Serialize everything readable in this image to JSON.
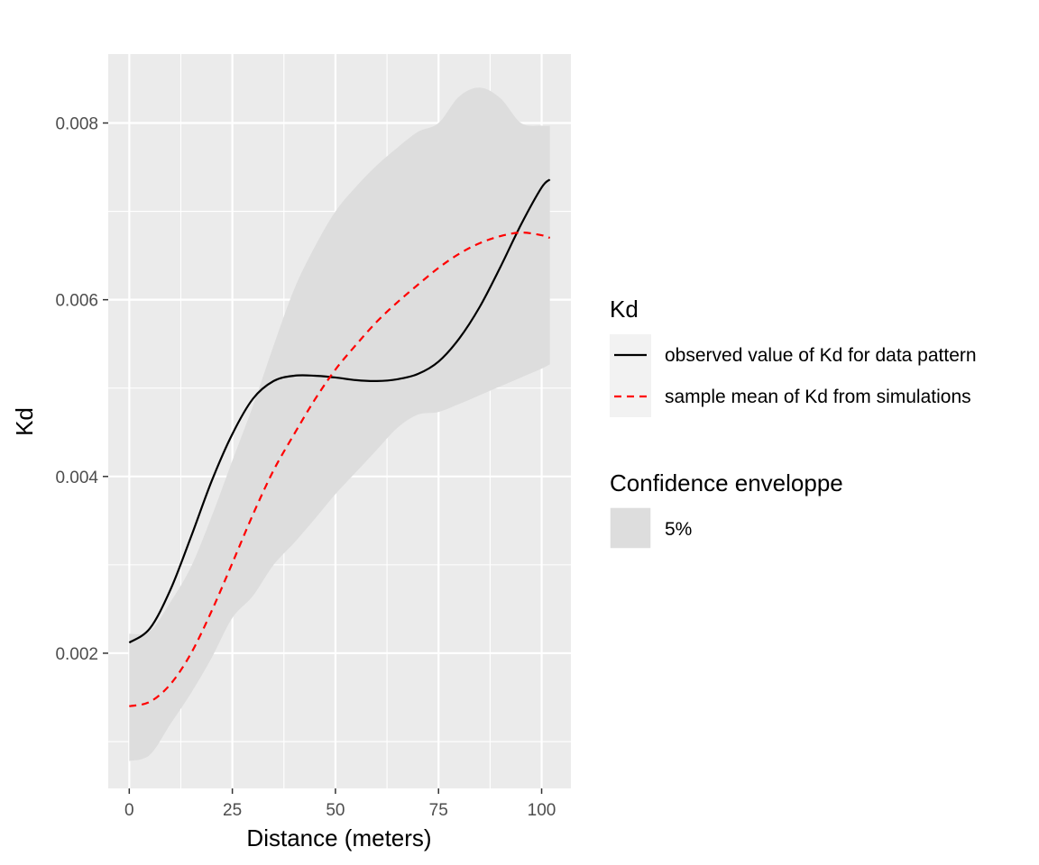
{
  "chart_data": {
    "type": "line",
    "xlabel": "Distance (meters)",
    "ylabel": "Kd",
    "xlim": [
      -5.1,
      107.1
    ],
    "ylim": [
      0.00047,
      0.00878
    ],
    "x_ticks": [
      0,
      25,
      50,
      75,
      100
    ],
    "x_tick_labels": [
      "0",
      "25",
      "50",
      "75",
      "100"
    ],
    "y_ticks": [
      0.002,
      0.004,
      0.006,
      0.008
    ],
    "y_tick_labels": [
      "0.002",
      "0.004",
      "0.006",
      "0.008"
    ],
    "grid": true,
    "legend_position": "right",
    "legends": [
      {
        "title": "Kd",
        "entries": [
          {
            "label": "observed value of Kd for data pattern",
            "color": "#000000",
            "linetype": "solid"
          },
          {
            "label": "sample mean of Kd from simulations",
            "color": "#ff0000",
            "linetype": "dashed"
          }
        ]
      },
      {
        "title": "Confidence enveloppe",
        "entries": [
          {
            "label": "5%",
            "fill": "#dddddd"
          }
        ]
      }
    ],
    "x": [
      0,
      5,
      10,
      15,
      20,
      25,
      30,
      35,
      40,
      45,
      50,
      55,
      60,
      65,
      70,
      75,
      80,
      85,
      90,
      95,
      100,
      102
    ],
    "series": [
      {
        "name": "observed value of Kd for data pattern",
        "color": "#000000",
        "linetype": "solid",
        "values": [
          0.00212,
          0.00228,
          0.00272,
          0.00332,
          0.00395,
          0.00448,
          0.00488,
          0.00508,
          0.00514,
          0.00514,
          0.00512,
          0.00509,
          0.00508,
          0.0051,
          0.00516,
          0.0053,
          0.00556,
          0.00592,
          0.00637,
          0.00685,
          0.00727,
          0.00736
        ]
      },
      {
        "name": "sample mean of Kd from simulations",
        "color": "#ff0000",
        "linetype": "dashed",
        "values": [
          0.0014,
          0.00145,
          0.00165,
          0.002,
          0.00248,
          0.00302,
          0.00357,
          0.00407,
          0.00448,
          0.00487,
          0.00521,
          0.00549,
          0.00575,
          0.00597,
          0.00617,
          0.00636,
          0.00652,
          0.00664,
          0.00672,
          0.00676,
          0.00673,
          0.0067
        ]
      }
    ],
    "envelope": {
      "name": "5%",
      "fill": "#dddddd",
      "lower": [
        0.00078,
        0.00085,
        0.0012,
        0.00155,
        0.00195,
        0.0024,
        0.00265,
        0.003,
        0.00325,
        0.00352,
        0.0038,
        0.00405,
        0.0043,
        0.00455,
        0.0047,
        0.00473,
        0.00482,
        0.00492,
        0.00502,
        0.00512,
        0.00522,
        0.00527
      ],
      "upper": [
        0.00222,
        0.00225,
        0.00258,
        0.00298,
        0.00355,
        0.00418,
        0.0048,
        0.00548,
        0.00612,
        0.0066,
        0.007,
        0.00728,
        0.00752,
        0.00772,
        0.0079,
        0.008,
        0.0083,
        0.0084,
        0.00828,
        0.008,
        0.00797,
        0.00797
      ]
    }
  }
}
